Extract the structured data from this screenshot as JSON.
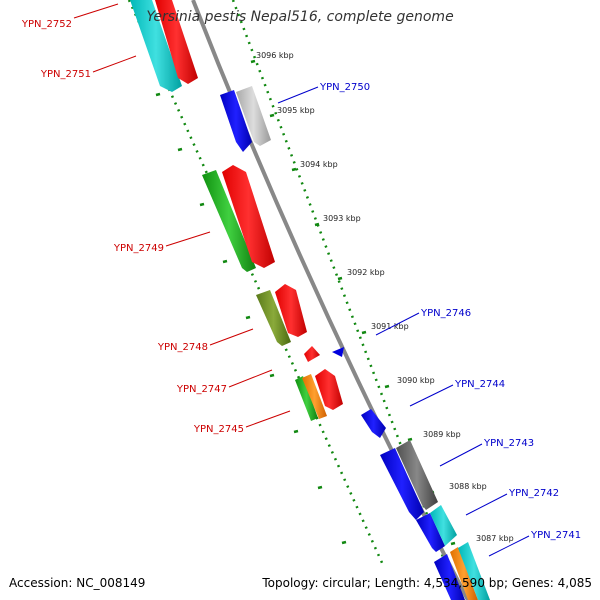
{
  "title": "Yersinia pestis Nepal516, complete genome",
  "footer": {
    "accession": "Accession: NC_008149",
    "topology": "Topology: circular; Length: 4,534,590 bp; Genes: 4,085"
  },
  "colors": {
    "forward_label": "#cc0000",
    "reverse_label": "#0000cc",
    "backbone": "#888888",
    "tick_dots": "#118811"
  },
  "kbp_ticks": [
    "3096 kbp",
    "3095 kbp",
    "3094 kbp",
    "3093 kbp",
    "3092 kbp",
    "3091 kbp",
    "3090 kbp",
    "3089 kbp",
    "3088 kbp",
    "3087 kbp"
  ],
  "genes": [
    {
      "label": "YPN_2752",
      "strand": "forward"
    },
    {
      "label": "YPN_2751",
      "strand": "forward"
    },
    {
      "label": "YPN_2749",
      "strand": "forward"
    },
    {
      "label": "YPN_2748",
      "strand": "forward"
    },
    {
      "label": "YPN_2747",
      "strand": "forward"
    },
    {
      "label": "YPN_2745",
      "strand": "forward"
    },
    {
      "label": "YPN_2750",
      "strand": "reverse"
    },
    {
      "label": "YPN_2746",
      "strand": "reverse"
    },
    {
      "label": "YPN_2744",
      "strand": "reverse"
    },
    {
      "label": "YPN_2743",
      "strand": "reverse"
    },
    {
      "label": "YPN_2742",
      "strand": "reverse"
    },
    {
      "label": "YPN_2741",
      "strand": "reverse"
    }
  ]
}
